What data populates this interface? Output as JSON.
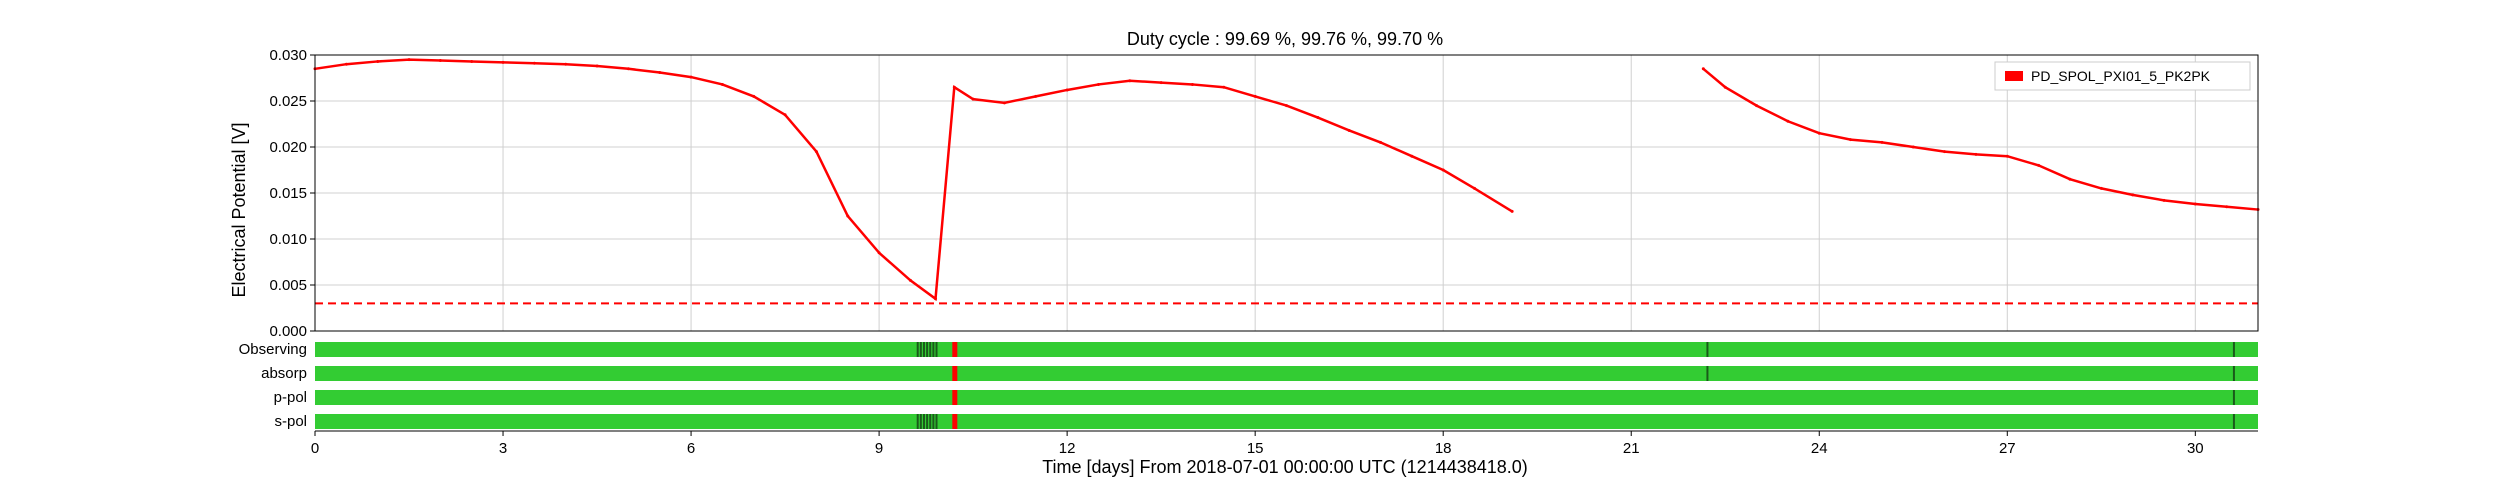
{
  "chart_data": {
    "type": "line",
    "title": "Duty cycle : 99.69 %, 99.76 %, 99.70 %",
    "xlabel": "Time [days] From 2018-07-01 00:00:00 UTC (1214438418.0)",
    "ylabel": "Electrical Potential [V]",
    "xlim": [
      0,
      31
    ],
    "ylim": [
      0,
      0.03
    ],
    "x_ticks": [
      0,
      3,
      6,
      9,
      12,
      15,
      18,
      21,
      24,
      27,
      30
    ],
    "x_tick_labels": [
      "0",
      "3",
      "6",
      "9",
      "12",
      "15",
      "18",
      "21",
      "24",
      "27",
      "30"
    ],
    "y_ticks": [
      0,
      0.005,
      0.01,
      0.015,
      0.02,
      0.025,
      0.03
    ],
    "y_tick_labels": [
      "0.000",
      "0.005",
      "0.010",
      "0.015",
      "0.020",
      "0.025",
      "0.030"
    ],
    "grid": true,
    "legend_position": "top-right",
    "series": [
      {
        "name": "PD_SPOL_PXI01_5_PK2PK",
        "color": "#ff0000",
        "x": [
          0,
          0.5,
          1,
          1.5,
          2,
          2.5,
          3,
          3.5,
          4,
          4.5,
          5,
          5.5,
          6,
          6.5,
          7,
          7.5,
          8,
          8.5,
          9,
          9.5,
          9.9,
          10.2,
          10.5,
          11,
          11.5,
          12,
          12.5,
          13,
          13.5,
          14,
          14.5,
          15,
          15.5,
          16,
          16.5,
          17,
          17.5,
          18,
          18.5,
          19.1,
          22.15,
          22.5,
          23,
          23.5,
          24,
          24.5,
          25,
          25.5,
          26,
          26.5,
          27,
          27.5,
          28,
          28.5,
          29,
          29.5,
          30,
          30.5,
          31
        ],
        "y": [
          0.0285,
          0.029,
          0.0293,
          0.0295,
          0.0294,
          0.0293,
          0.0292,
          0.0291,
          0.029,
          0.0288,
          0.0285,
          0.0281,
          0.0276,
          0.0268,
          0.0255,
          0.0235,
          0.0195,
          0.0125,
          0.0085,
          0.0055,
          0.0035,
          0.0265,
          0.0252,
          0.0248,
          0.0255,
          0.0262,
          0.0268,
          0.0272,
          0.027,
          0.0268,
          0.0265,
          0.0255,
          0.0245,
          0.0232,
          0.0218,
          0.0205,
          0.019,
          0.0175,
          0.0155,
          0.013,
          0.0285,
          0.0265,
          0.0245,
          0.0228,
          0.0215,
          0.0208,
          0.0205,
          0.02,
          0.0195,
          0.0192,
          0.019,
          0.018,
          0.0165,
          0.0155,
          0.0148,
          0.0142,
          0.0138,
          0.0135,
          0.0132
        ]
      }
    ],
    "gaps_days": [
      [
        10.18,
        10.25
      ],
      [
        19.1,
        22.15
      ]
    ],
    "threshold_line": {
      "y": 0.003,
      "style": "dashed",
      "color": "#ff0000"
    },
    "segment_rows": [
      {
        "label": "Observing",
        "color": "#33cc33",
        "dark_marks": [
          9.6,
          9.65,
          9.7,
          9.75,
          9.8,
          9.85,
          9.9,
          22.2,
          30.6
        ],
        "flag_days": [
          10.2
        ]
      },
      {
        "label": "absorp",
        "color": "#33cc33",
        "dark_marks": [
          22.2,
          30.6
        ],
        "flag_days": [
          10.2
        ]
      },
      {
        "label": "p-pol",
        "color": "#33cc33",
        "dark_marks": [
          30.6
        ],
        "flag_days": [
          10.2
        ]
      },
      {
        "label": "s-pol",
        "color": "#33cc33",
        "dark_marks": [
          9.6,
          9.65,
          9.7,
          9.75,
          9.8,
          9.85,
          9.9,
          30.6
        ],
        "flag_days": [
          10.2
        ]
      }
    ]
  }
}
